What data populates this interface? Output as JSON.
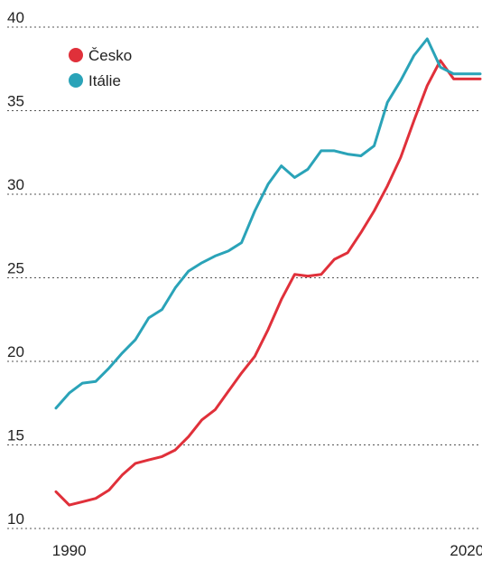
{
  "chart_data": {
    "type": "line",
    "title": "",
    "xlabel": "",
    "ylabel": "",
    "x": [
      1989,
      1990,
      1991,
      1992,
      1993,
      1994,
      1995,
      1996,
      1997,
      1998,
      1999,
      2000,
      2001,
      2002,
      2003,
      2004,
      2005,
      2006,
      2007,
      2008,
      2009,
      2010,
      2011,
      2012,
      2013,
      2014,
      2015,
      2016,
      2017,
      2018,
      2019,
      2020,
      2021
    ],
    "xlim": [
      1989,
      2021
    ],
    "x_ticks": [
      "1990",
      "2020"
    ],
    "ylim": [
      10,
      40
    ],
    "y_ticks": [
      "10",
      "15",
      "20",
      "25",
      "30",
      "35",
      "40"
    ],
    "grid": "horizontal dotted",
    "legend": "top-left",
    "series": [
      {
        "name": "Česko",
        "color": "#e0303a",
        "values": [
          12.2,
          11.4,
          11.6,
          11.8,
          12.3,
          13.2,
          13.9,
          14.1,
          14.3,
          14.7,
          15.5,
          16.5,
          17.1,
          18.2,
          19.3,
          20.3,
          21.9,
          23.7,
          25.2,
          25.1,
          25.2,
          26.1,
          26.5,
          27.7,
          29.0,
          30.5,
          32.2,
          34.4,
          36.5,
          38.0,
          36.9,
          36.9,
          36.9
        ]
      },
      {
        "name": "Itálie",
        "color": "#2aa3b8",
        "values": [
          17.2,
          18.1,
          18.7,
          18.8,
          19.6,
          20.5,
          21.3,
          22.6,
          23.1,
          24.4,
          25.4,
          25.9,
          26.3,
          26.6,
          27.1,
          29.0,
          30.6,
          31.7,
          31.0,
          31.5,
          32.6,
          32.6,
          32.4,
          32.3,
          32.9,
          35.5,
          36.8,
          38.3,
          39.3,
          37.6,
          37.2,
          37.2,
          37.2
        ]
      }
    ]
  }
}
